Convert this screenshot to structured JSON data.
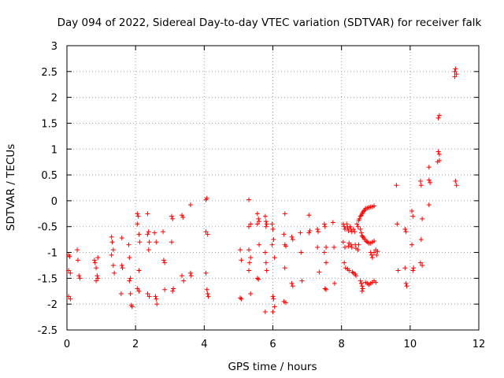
{
  "chart_data": {
    "type": "scatter",
    "title": "Day 094 of 2022, Sidereal Day-to-day VTEC variation (SDTVAR) for receiver falk",
    "xlabel": "GPS time / hours",
    "ylabel": "SDTVAR / TECUs",
    "xlim": [
      0,
      12
    ],
    "ylim": [
      -2.5,
      3
    ],
    "xticks": [
      0,
      2,
      4,
      6,
      8,
      10,
      12
    ],
    "yticks": [
      -2.5,
      -2,
      -1.5,
      -1,
      -0.5,
      0,
      0.5,
      1,
      1.5,
      2,
      2.5,
      3
    ],
    "xtick_labels": [
      "0",
      "2",
      "4",
      "6",
      "8",
      "10",
      "12"
    ],
    "ytick_labels": [
      "-2.5",
      "-2",
      "-1.5",
      "-1",
      "-0.5",
      "0",
      "0.5",
      "1",
      "1.5",
      "2",
      "2.5",
      "3"
    ],
    "grid": true,
    "marker": "+",
    "color": "#ff0000",
    "series": [
      {
        "name": "SDTVAR",
        "points": [
          [
            0.05,
            -1.05
          ],
          [
            0.08,
            -1.08
          ],
          [
            0.05,
            -1.35
          ],
          [
            0.1,
            -1.4
          ],
          [
            0.05,
            -1.85
          ],
          [
            0.1,
            -1.9
          ],
          [
            0.3,
            -0.95
          ],
          [
            0.32,
            -1.15
          ],
          [
            0.35,
            -1.45
          ],
          [
            0.38,
            -1.5
          ],
          [
            0.8,
            -1.15
          ],
          [
            0.82,
            -1.2
          ],
          [
            0.85,
            -1.3
          ],
          [
            0.88,
            -1.45
          ],
          [
            0.9,
            -1.5
          ],
          [
            0.85,
            -1.55
          ],
          [
            0.9,
            -1.1
          ],
          [
            1.3,
            -0.7
          ],
          [
            1.32,
            -0.8
          ],
          [
            1.35,
            -0.95
          ],
          [
            1.3,
            -1.05
          ],
          [
            1.35,
            -1.25
          ],
          [
            1.38,
            -1.4
          ],
          [
            1.6,
            -0.72
          ],
          [
            1.6,
            -1.25
          ],
          [
            1.62,
            -1.3
          ],
          [
            1.58,
            -1.8
          ],
          [
            1.8,
            -0.85
          ],
          [
            1.82,
            -1.1
          ],
          [
            1.85,
            -1.5
          ],
          [
            1.82,
            -1.55
          ],
          [
            1.85,
            -1.8
          ],
          [
            1.88,
            -2.02
          ],
          [
            1.9,
            -2.05
          ],
          [
            2.05,
            -0.25
          ],
          [
            2.08,
            -0.3
          ],
          [
            2.05,
            -0.45
          ],
          [
            2.1,
            -0.65
          ],
          [
            2.12,
            -0.8
          ],
          [
            2.1,
            -1.35
          ],
          [
            2.05,
            -1.7
          ],
          [
            2.1,
            -1.75
          ],
          [
            2.35,
            -0.25
          ],
          [
            2.38,
            -0.6
          ],
          [
            2.35,
            -0.65
          ],
          [
            2.4,
            -0.8
          ],
          [
            2.38,
            -0.95
          ],
          [
            2.35,
            -1.8
          ],
          [
            2.4,
            -1.85
          ],
          [
            2.55,
            -0.62
          ],
          [
            2.6,
            -0.8
          ],
          [
            2.58,
            -1.85
          ],
          [
            2.6,
            -1.9
          ],
          [
            2.62,
            -2.0
          ],
          [
            2.8,
            -0.6
          ],
          [
            2.82,
            -1.15
          ],
          [
            2.85,
            -1.2
          ],
          [
            2.85,
            -1.72
          ],
          [
            3.05,
            -0.3
          ],
          [
            3.08,
            -0.35
          ],
          [
            3.05,
            -0.8
          ],
          [
            3.1,
            -1.7
          ],
          [
            3.08,
            -1.75
          ],
          [
            3.35,
            -0.28
          ],
          [
            3.38,
            -0.32
          ],
          [
            3.35,
            -1.45
          ],
          [
            3.4,
            -1.55
          ],
          [
            3.6,
            -0.08
          ],
          [
            3.6,
            -1.4
          ],
          [
            3.62,
            -1.45
          ],
          [
            4.05,
            0.02
          ],
          [
            4.08,
            0.05
          ],
          [
            4.05,
            -0.6
          ],
          [
            4.1,
            -0.65
          ],
          [
            4.05,
            -1.4
          ],
          [
            4.08,
            -1.72
          ],
          [
            4.1,
            -1.8
          ],
          [
            4.12,
            -1.85
          ],
          [
            5.05,
            -0.95
          ],
          [
            5.08,
            -1.15
          ],
          [
            5.05,
            -1.88
          ],
          [
            5.08,
            -1.9
          ],
          [
            5.3,
            0.02
          ],
          [
            5.35,
            -0.45
          ],
          [
            5.3,
            -0.5
          ],
          [
            5.3,
            -0.95
          ],
          [
            5.35,
            -1.1
          ],
          [
            5.32,
            -1.2
          ],
          [
            5.3,
            -1.35
          ],
          [
            5.35,
            -1.8
          ],
          [
            5.55,
            -0.25
          ],
          [
            5.58,
            -0.35
          ],
          [
            5.6,
            -0.4
          ],
          [
            5.55,
            -0.45
          ],
          [
            5.6,
            -0.85
          ],
          [
            5.55,
            -1.5
          ],
          [
            5.58,
            -1.52
          ],
          [
            5.78,
            -0.3
          ],
          [
            5.8,
            -0.4
          ],
          [
            5.82,
            -0.45
          ],
          [
            5.8,
            -0.5
          ],
          [
            5.78,
            -1.0
          ],
          [
            5.8,
            -1.2
          ],
          [
            5.82,
            -1.35
          ],
          [
            5.78,
            -2.15
          ],
          [
            5.98,
            -0.45
          ],
          [
            6.0,
            -0.55
          ],
          [
            6.02,
            -0.75
          ],
          [
            5.98,
            -0.85
          ],
          [
            6.05,
            -1.1
          ],
          [
            6.0,
            -1.85
          ],
          [
            6.02,
            -1.9
          ],
          [
            6.05,
            -2.05
          ],
          [
            6.0,
            -2.15
          ],
          [
            6.35,
            -0.25
          ],
          [
            6.32,
            -0.65
          ],
          [
            6.35,
            -0.85
          ],
          [
            6.38,
            -0.88
          ],
          [
            6.35,
            -1.3
          ],
          [
            6.32,
            -1.95
          ],
          [
            6.38,
            -1.97
          ],
          [
            6.55,
            -0.7
          ],
          [
            6.58,
            -0.75
          ],
          [
            6.55,
            -1.6
          ],
          [
            6.58,
            -1.65
          ],
          [
            6.8,
            -0.62
          ],
          [
            6.82,
            -1.0
          ],
          [
            6.85,
            -1.55
          ],
          [
            7.05,
            -0.28
          ],
          [
            7.08,
            -0.58
          ],
          [
            7.05,
            -0.62
          ],
          [
            7.3,
            -0.55
          ],
          [
            7.32,
            -0.6
          ],
          [
            7.3,
            -0.9
          ],
          [
            7.35,
            -1.38
          ],
          [
            7.5,
            -0.45
          ],
          [
            7.52,
            -0.5
          ],
          [
            7.55,
            -0.9
          ],
          [
            7.5,
            -1.0
          ],
          [
            7.55,
            -1.2
          ],
          [
            7.52,
            -1.7
          ],
          [
            7.55,
            -1.72
          ],
          [
            7.75,
            -0.42
          ],
          [
            7.78,
            -0.9
          ],
          [
            7.8,
            -1.6
          ],
          [
            8.05,
            -0.45
          ],
          [
            8.08,
            -0.5
          ],
          [
            8.1,
            -0.55
          ],
          [
            8.05,
            -0.8
          ],
          [
            8.1,
            -0.9
          ],
          [
            8.08,
            -1.2
          ],
          [
            8.12,
            -1.3
          ],
          [
            8.15,
            -0.45
          ],
          [
            8.18,
            -0.52
          ],
          [
            8.2,
            -0.58
          ],
          [
            8.22,
            -0.82
          ],
          [
            8.2,
            -0.88
          ],
          [
            8.18,
            -1.32
          ],
          [
            8.22,
            -1.35
          ],
          [
            8.25,
            -0.5
          ],
          [
            8.28,
            -0.55
          ],
          [
            8.3,
            -0.6
          ],
          [
            8.28,
            -0.85
          ],
          [
            8.3,
            -0.9
          ],
          [
            8.32,
            -1.38
          ],
          [
            8.35,
            -1.4
          ],
          [
            8.35,
            -0.55
          ],
          [
            8.38,
            -0.6
          ],
          [
            8.4,
            -0.85
          ],
          [
            8.42,
            -0.92
          ],
          [
            8.4,
            -1.42
          ],
          [
            8.42,
            -1.45
          ],
          [
            8.45,
            -0.45
          ],
          [
            8.48,
            -0.5
          ],
          [
            8.5,
            -0.38
          ],
          [
            8.52,
            -0.35
          ],
          [
            8.5,
            -0.85
          ],
          [
            8.48,
            -0.95
          ],
          [
            8.55,
            -0.3
          ],
          [
            8.58,
            -0.28
          ],
          [
            8.6,
            -0.25
          ],
          [
            8.62,
            -0.22
          ],
          [
            8.65,
            -0.2
          ],
          [
            8.68,
            -0.18
          ],
          [
            8.55,
            -0.55
          ],
          [
            8.58,
            -0.62
          ],
          [
            8.6,
            -0.68
          ],
          [
            8.62,
            -0.7
          ],
          [
            8.65,
            -0.72
          ],
          [
            8.68,
            -0.75
          ],
          [
            8.55,
            -1.55
          ],
          [
            8.58,
            -1.6
          ],
          [
            8.6,
            -1.65
          ],
          [
            8.62,
            -1.7
          ],
          [
            8.6,
            -1.75
          ],
          [
            8.58,
            -1.6
          ],
          [
            8.7,
            -0.15
          ],
          [
            8.75,
            -0.14
          ],
          [
            8.8,
            -0.13
          ],
          [
            8.85,
            -0.12
          ],
          [
            8.9,
            -0.12
          ],
          [
            8.95,
            -0.1
          ],
          [
            8.72,
            -0.78
          ],
          [
            8.75,
            -0.8
          ],
          [
            8.8,
            -0.82
          ],
          [
            8.85,
            -0.82
          ],
          [
            8.9,
            -0.8
          ],
          [
            8.95,
            -0.78
          ],
          [
            8.7,
            -1.58
          ],
          [
            8.75,
            -1.6
          ],
          [
            8.8,
            -1.62
          ],
          [
            8.85,
            -1.6
          ],
          [
            8.9,
            -1.58
          ],
          [
            8.95,
            -1.55
          ],
          [
            9.0,
            -1.58
          ],
          [
            8.85,
            -1.0
          ],
          [
            8.88,
            -1.05
          ],
          [
            8.9,
            -1.1
          ],
          [
            8.95,
            -1.0
          ],
          [
            9.0,
            -0.95
          ],
          [
            9.05,
            -0.98
          ],
          [
            9.02,
            -1.05
          ],
          [
            9.6,
            0.3
          ],
          [
            9.62,
            -0.45
          ],
          [
            9.65,
            -1.35
          ],
          [
            9.85,
            -0.55
          ],
          [
            9.88,
            -0.6
          ],
          [
            9.85,
            -1.3
          ],
          [
            9.88,
            -1.6
          ],
          [
            9.9,
            -1.65
          ],
          [
            10.05,
            -0.2
          ],
          [
            10.08,
            -0.3
          ],
          [
            10.05,
            -0.85
          ],
          [
            10.1,
            -1.3
          ],
          [
            10.08,
            -1.35
          ],
          [
            10.3,
            0.38
          ],
          [
            10.32,
            0.3
          ],
          [
            10.35,
            -0.35
          ],
          [
            10.32,
            -0.75
          ],
          [
            10.3,
            -1.2
          ],
          [
            10.35,
            -1.25
          ],
          [
            10.55,
            0.65
          ],
          [
            10.55,
            0.4
          ],
          [
            10.58,
            0.35
          ],
          [
            10.55,
            -0.08
          ],
          [
            10.82,
            1.6
          ],
          [
            10.85,
            1.65
          ],
          [
            10.82,
            0.95
          ],
          [
            10.85,
            0.9
          ],
          [
            10.8,
            0.75
          ],
          [
            10.85,
            0.78
          ],
          [
            11.3,
            2.5
          ],
          [
            11.32,
            2.55
          ],
          [
            11.35,
            2.45
          ],
          [
            11.3,
            2.4
          ],
          [
            11.32,
            0.38
          ],
          [
            11.35,
            0.3
          ]
        ]
      }
    ]
  }
}
